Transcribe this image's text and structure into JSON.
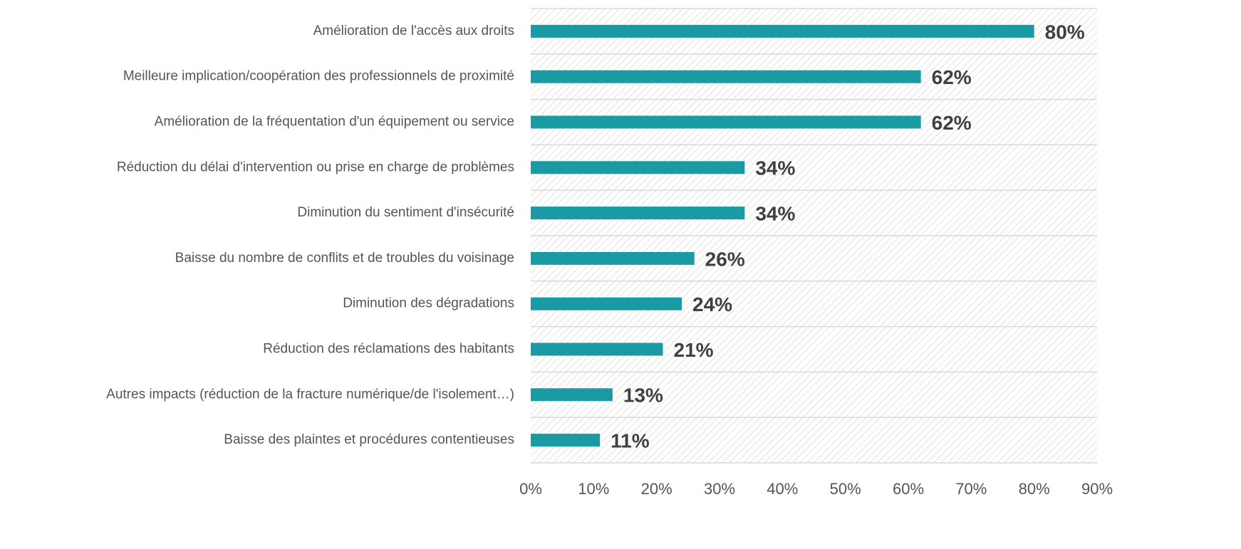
{
  "chart_data": {
    "type": "bar",
    "orientation": "horizontal",
    "categories": [
      "Amélioration de l'accès aux droits",
      "Meilleure implication/coopération des professionnels de proximité",
      "Amélioration de la fréquentation d'un équipement ou service",
      "Réduction du délai d'intervention ou prise en charge de problèmes",
      "Diminution du sentiment d'insécurité",
      "Baisse du nombre de conflits et de troubles du voisinage",
      "Diminution des dégradations",
      "Réduction des réclamations des habitants",
      "Autres impacts (réduction de la fracture numérique/de l'isolement…)",
      "Baisse des plaintes et procédures contentieuses"
    ],
    "values": [
      80,
      62,
      62,
      34,
      34,
      26,
      24,
      21,
      13,
      11
    ],
    "value_labels": [
      "80%",
      "62%",
      "62%",
      "34%",
      "34%",
      "26%",
      "24%",
      "21%",
      "13%",
      "11%"
    ],
    "color": "#1a9aa2",
    "xlim": [
      0,
      90
    ],
    "xticks": [
      {
        "value": 0,
        "label": "0%"
      },
      {
        "value": 10,
        "label": "10%"
      },
      {
        "value": 20,
        "label": "20%"
      },
      {
        "value": 30,
        "label": "30%"
      },
      {
        "value": 40,
        "label": "40%"
      },
      {
        "value": 50,
        "label": "50%"
      },
      {
        "value": 60,
        "label": "60%"
      },
      {
        "value": 70,
        "label": "70%"
      },
      {
        "value": 80,
        "label": "80%"
      },
      {
        "value": 90,
        "label": "90%"
      }
    ]
  }
}
